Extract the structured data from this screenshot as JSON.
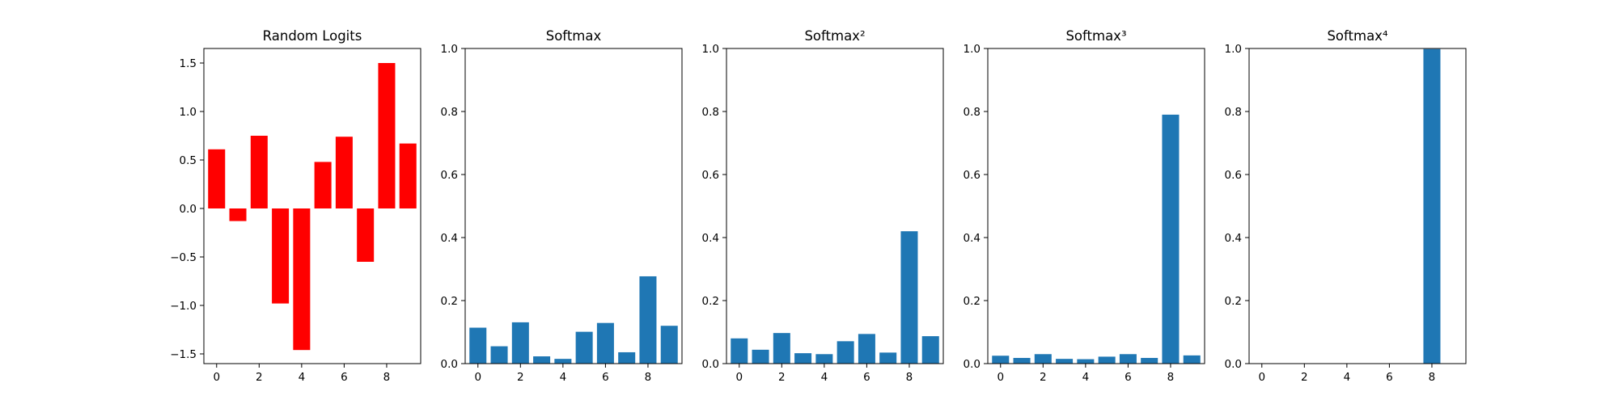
{
  "chart_data": [
    {
      "type": "bar",
      "title": "Random Logits",
      "xlabel": "",
      "ylabel": "",
      "color": "#ff0000",
      "x": [
        0,
        1,
        2,
        3,
        4,
        5,
        6,
        7,
        8,
        9
      ],
      "values": [
        0.61,
        -0.13,
        0.75,
        -0.98,
        -1.46,
        0.48,
        0.74,
        -0.55,
        1.5,
        0.67
      ],
      "xlim": [
        -0.6,
        9.6
      ],
      "ylim": [
        -1.6,
        1.65
      ],
      "xticks": [
        "0",
        "2",
        "4",
        "6",
        "8"
      ],
      "yticks": [
        "−1.5",
        "−1.0",
        "−0.5",
        "0.0",
        "0.5",
        "1.0",
        "1.5"
      ]
    },
    {
      "type": "bar",
      "title": "Softmax",
      "xlabel": "",
      "ylabel": "",
      "color": "#1f77b4",
      "x": [
        0,
        1,
        2,
        3,
        4,
        5,
        6,
        7,
        8,
        9
      ],
      "values": [
        0.114,
        0.055,
        0.131,
        0.023,
        0.015,
        0.101,
        0.129,
        0.036,
        0.277,
        0.12
      ],
      "xlim": [
        -0.6,
        9.6
      ],
      "ylim": [
        0,
        1
      ],
      "xticks": [
        "0",
        "2",
        "4",
        "6",
        "8"
      ],
      "yticks": [
        "0.0",
        "0.2",
        "0.4",
        "0.6",
        "0.8",
        "1.0"
      ]
    },
    {
      "type": "bar",
      "title": "Softmax²",
      "xlabel": "",
      "ylabel": "",
      "color": "#1f77b4",
      "x": [
        0,
        1,
        2,
        3,
        4,
        5,
        6,
        7,
        8,
        9
      ],
      "values": [
        0.08,
        0.044,
        0.097,
        0.033,
        0.03,
        0.071,
        0.094,
        0.035,
        0.42,
        0.087
      ],
      "xlim": [
        -0.6,
        9.6
      ],
      "ylim": [
        0,
        1
      ],
      "xticks": [
        "0",
        "2",
        "4",
        "6",
        "8"
      ],
      "yticks": [
        "0.0",
        "0.2",
        "0.4",
        "0.6",
        "0.8",
        "1.0"
      ]
    },
    {
      "type": "bar",
      "title": "Softmax³",
      "xlabel": "",
      "ylabel": "",
      "color": "#1f77b4",
      "x": [
        0,
        1,
        2,
        3,
        4,
        5,
        6,
        7,
        8,
        9
      ],
      "values": [
        0.025,
        0.018,
        0.03,
        0.015,
        0.014,
        0.022,
        0.03,
        0.018,
        0.79,
        0.026
      ],
      "xlim": [
        -0.6,
        9.6
      ],
      "ylim": [
        0,
        1
      ],
      "xticks": [
        "0",
        "2",
        "4",
        "6",
        "8"
      ],
      "yticks": [
        "0.0",
        "0.2",
        "0.4",
        "0.6",
        "0.8",
        "1.0"
      ]
    },
    {
      "type": "bar",
      "title": "Softmax⁴",
      "xlabel": "",
      "ylabel": "",
      "color": "#1f77b4",
      "x": [
        0,
        1,
        2,
        3,
        4,
        5,
        6,
        7,
        8,
        9
      ],
      "values": [
        0.0002,
        0.0001,
        0.0003,
        0.0001,
        0.0001,
        0.0002,
        0.0003,
        0.0001,
        0.9982,
        0.0002
      ],
      "xlim": [
        -0.6,
        9.6
      ],
      "ylim": [
        0,
        1
      ],
      "xticks": [
        "0",
        "2",
        "4",
        "6",
        "8"
      ],
      "yticks": [
        "0.0",
        "0.2",
        "0.4",
        "0.6",
        "0.8",
        "1.0"
      ]
    }
  ]
}
